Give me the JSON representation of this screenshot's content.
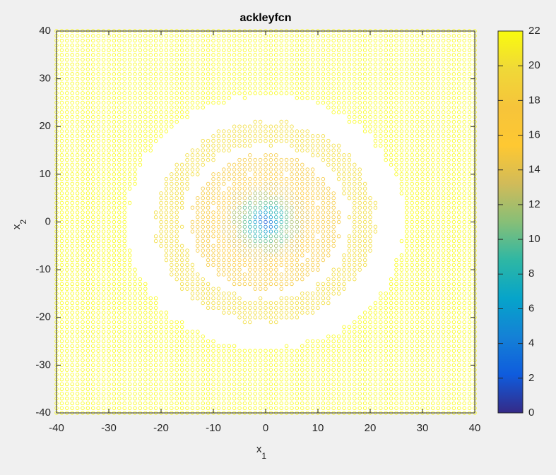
{
  "chart_data": {
    "type": "contour",
    "title": "ackleyfcn",
    "xlabel": {
      "base": "x",
      "subscript": "1"
    },
    "ylabel": {
      "base": "x",
      "subscript": "2"
    },
    "xlim": [
      -40,
      40
    ],
    "ylim": [
      -40,
      40
    ],
    "xticks": [
      -40,
      -30,
      -20,
      -10,
      0,
      10,
      20,
      30,
      40
    ],
    "yticks": [
      -40,
      -30,
      -20,
      -10,
      0,
      10,
      20,
      30,
      40
    ],
    "clim": [
      0,
      22
    ],
    "cticks": [
      0,
      2,
      4,
      6,
      8,
      10,
      12,
      14,
      16,
      18,
      20,
      22
    ],
    "colormap": [
      {
        "value": 0,
        "color": "#352a87"
      },
      {
        "value": 2.2,
        "color": "#0f5cdd"
      },
      {
        "value": 4.4,
        "color": "#1481d6"
      },
      {
        "value": 6.6,
        "color": "#06a4ca"
      },
      {
        "value": 8.8,
        "color": "#2eb7a4"
      },
      {
        "value": 11,
        "color": "#87bf77"
      },
      {
        "value": 13.2,
        "color": "#d1bb59"
      },
      {
        "value": 15.4,
        "color": "#fec832"
      },
      {
        "value": 17.6,
        "color": "#f6c43a"
      },
      {
        "value": 19.8,
        "color": "#f0d838"
      },
      {
        "value": 22,
        "color": "#f9fb0e"
      }
    ],
    "contours": [
      {
        "level": 2,
        "r": 0.3
      },
      {
        "level": 4,
        "r": 1
      },
      {
        "level": 6,
        "r": 1.8
      },
      {
        "level": 8,
        "r": 2.8
      },
      {
        "level": 10,
        "r": 4
      },
      {
        "level": 12,
        "r": 5.3
      },
      {
        "level": 14,
        "r": 7
      },
      {
        "level": 16,
        "r": 9.2
      },
      {
        "level": 18,
        "r": 12.5
      },
      {
        "level": 20,
        "r": 18.7
      },
      {
        "level": 22,
        "r": 30
      }
    ]
  }
}
